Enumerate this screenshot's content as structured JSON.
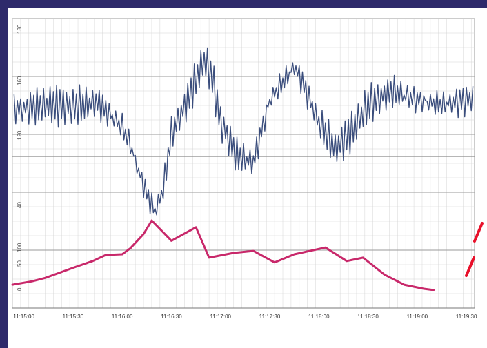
{
  "chart_data": {
    "type": "line",
    "title": "",
    "xlabel": "",
    "ylabel": "",
    "x_ticks": [
      "11:15:00",
      "11:15:30",
      "11:16:00",
      "11:16:30",
      "11:17:00",
      "11:17:30",
      "11:18:00",
      "11:18:30",
      "11:19:00",
      "11:19:30"
    ],
    "y_ticks_upper": [
      "180",
      "160",
      "120",
      "60",
      "40"
    ],
    "y_ticks_lower": [
      "100",
      "50",
      "0"
    ],
    "xlim_seconds_after_start": [
      -7,
      275
    ],
    "grid": true,
    "colors": {
      "heart_rate": "#3a4d7c",
      "contraction": "#c8286a",
      "marker": "#e8102a",
      "frame": "#2e2a6b"
    },
    "series": [
      {
        "role": "heart-rate-trace",
        "x": [
          "11:15:00",
          "11:15:15",
          "11:15:30",
          "11:15:45",
          "11:16:00",
          "11:16:05",
          "11:16:10",
          "11:16:15",
          "11:16:20",
          "11:16:25",
          "11:16:30",
          "11:16:40",
          "11:16:50",
          "11:16:55",
          "11:17:00",
          "11:17:10",
          "11:17:20",
          "11:17:30",
          "11:17:45",
          "11:17:50",
          "11:18:00",
          "11:18:10",
          "11:18:20",
          "11:18:30",
          "11:18:45",
          "11:19:00",
          "11:19:15",
          "11:19:30",
          "11:19:45"
        ],
        "y": [
          156,
          158,
          157,
          159,
          148,
          140,
          128,
          118,
          110,
          120,
          145,
          160,
          178,
          170,
          150,
          135,
          132,
          160,
          175,
          168,
          150,
          138,
          146,
          158,
          164,
          160,
          158,
          160,
          162
        ]
      },
      {
        "role": "contraction-trace",
        "x": [
          "11:14:53",
          "11:15:05",
          "11:15:13",
          "11:15:30",
          "11:15:42",
          "11:15:50",
          "11:16:00",
          "11:16:05",
          "11:16:13",
          "11:16:18",
          "11:16:30",
          "11:16:45",
          "11:16:53",
          "11:17:08",
          "11:17:20",
          "11:17:33",
          "11:17:45",
          "11:18:04",
          "11:18:17",
          "11:18:27",
          "11:18:40",
          "11:18:52",
          "11:19:04",
          "11:19:10"
        ],
        "y": [
          5,
          10,
          15,
          30,
          40,
          49,
          50,
          59,
          80,
          100,
          70,
          90,
          45,
          52,
          55,
          38,
          50,
          60,
          40,
          45,
          20,
          5,
          -1,
          -3
        ]
      }
    ]
  }
}
